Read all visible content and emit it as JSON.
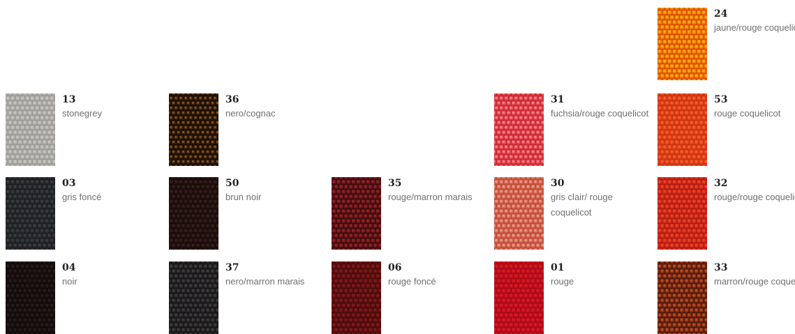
{
  "swatches": [
    {
      "code": "24",
      "name": "jaune/rouge coquelicot",
      "colors": {
        "base": "#f08a00",
        "hi": "#ffc233",
        "lo": "#e04b00"
      }
    },
    {
      "code": "13",
      "name": "stonegrey",
      "colors": {
        "base": "#b4b3ae",
        "hi": "#cfcfcb",
        "lo": "#9c9b96"
      }
    },
    {
      "code": "36",
      "name": "nero/cognac",
      "colors": {
        "base": "#3a2410",
        "hi": "#b0671b",
        "lo": "#1a0d05"
      }
    },
    {
      "code": "31",
      "name": "fuchsia/rouge coquelicot",
      "colors": {
        "base": "#e8505a",
        "hi": "#ff9aa3",
        "lo": "#c82830"
      }
    },
    {
      "code": "53",
      "name": "rouge coquelicot",
      "colors": {
        "base": "#e9481c",
        "hi": "#f36c3c",
        "lo": "#c93410"
      }
    },
    {
      "code": "03",
      "name": "gris foncé",
      "colors": {
        "base": "#2e2f33",
        "hi": "#43444a",
        "lo": "#1d1e21"
      }
    },
    {
      "code": "50",
      "name": "brun noir",
      "colors": {
        "base": "#2a1614",
        "hi": "#3e2420",
        "lo": "#170b0a"
      }
    },
    {
      "code": "35",
      "name": "rouge/marron marais",
      "colors": {
        "base": "#6e1a1c",
        "hi": "#b32228",
        "lo": "#3a0c0e"
      }
    },
    {
      "code": "30",
      "name": "gris clair/ rouge coquelicot",
      "colors": {
        "base": "#d8705a",
        "hi": "#eab49a",
        "lo": "#c24a3a"
      }
    },
    {
      "code": "32",
      "name": "rouge/rouge coquelicot",
      "colors": {
        "base": "#d8301e",
        "hi": "#ee5030",
        "lo": "#b21c12"
      }
    },
    {
      "code": "04",
      "name": "noir",
      "colors": {
        "base": "#1e1412",
        "hi": "#2e211d",
        "lo": "#100a09"
      }
    },
    {
      "code": "37",
      "name": "nero/marron marais",
      "colors": {
        "base": "#2d2b2c",
        "hi": "#48474a",
        "lo": "#171617"
      }
    },
    {
      "code": "06",
      "name": "rouge foncé",
      "colors": {
        "base": "#6a1414",
        "hi": "#8a2020",
        "lo": "#4a0a0a"
      }
    },
    {
      "code": "01",
      "name": "rouge",
      "colors": {
        "base": "#c8121e",
        "hi": "#dc2230",
        "lo": "#a80a14"
      }
    },
    {
      "code": "33",
      "name": "marron/rouge coquelicot",
      "colors": {
        "base": "#8e3418",
        "hi": "#d6552a",
        "lo": "#4e1a0c"
      }
    }
  ]
}
